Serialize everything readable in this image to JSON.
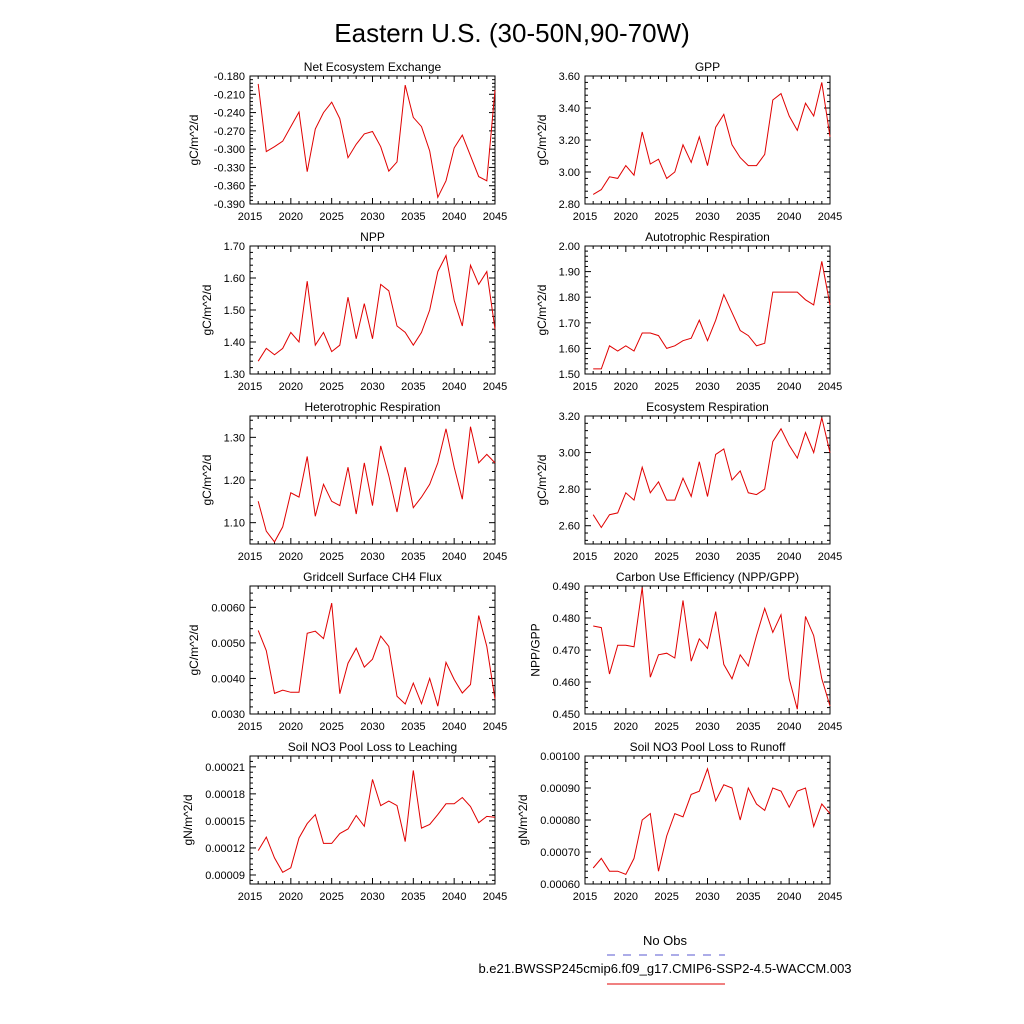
{
  "page": {
    "title": "Eastern U.S. (30-50N,90-70W)"
  },
  "legend": {
    "obs_label": "No Obs",
    "obs_color": "#5a5ad0",
    "model_label": "b.e21.BWSSP245cmip6.f09_g17.CMIP6-SSP2-4.5-WACCM.003",
    "model_color": "#e00000"
  },
  "chart_data": [
    {
      "type": "line",
      "title": "Net Ecosystem Exchange",
      "ylabel": "gC/m^2/d",
      "xlim": [
        2015,
        2045
      ],
      "xticks": [
        2015,
        2020,
        2025,
        2030,
        2035,
        2040,
        2045
      ],
      "ylim": [
        -0.39,
        -0.18
      ],
      "yticks": [
        -0.18,
        -0.21,
        -0.24,
        -0.27,
        -0.3,
        -0.33,
        -0.36,
        -0.39
      ],
      "ytick_labels": [
        "-0.180",
        "-0.210",
        "-0.240",
        "-0.270",
        "-0.300",
        "-0.330",
        "-0.360",
        "-0.390"
      ],
      "x": [
        2016,
        2017,
        2018,
        2019,
        2020,
        2021,
        2022,
        2023,
        2024,
        2025,
        2026,
        2027,
        2028,
        2029,
        2030,
        2031,
        2032,
        2033,
        2034,
        2035,
        2036,
        2037,
        2038,
        2039,
        2040,
        2041,
        2042,
        2043,
        2044,
        2045
      ],
      "series": [
        {
          "values": [
            -0.193,
            -0.304,
            -0.296,
            -0.287,
            -0.263,
            -0.239,
            -0.337,
            -0.267,
            -0.24,
            -0.223,
            -0.25,
            -0.314,
            -0.292,
            -0.275,
            -0.271,
            -0.296,
            -0.336,
            -0.321,
            -0.195,
            -0.248,
            -0.263,
            -0.303,
            -0.379,
            -0.352,
            -0.298,
            -0.277,
            -0.311,
            -0.345,
            -0.352,
            -0.203
          ]
        }
      ]
    },
    {
      "type": "line",
      "title": "GPP",
      "ylabel": "gC/m^2/d",
      "xlim": [
        2015,
        2045
      ],
      "xticks": [
        2015,
        2020,
        2025,
        2030,
        2035,
        2040,
        2045
      ],
      "ylim": [
        2.8,
        3.6
      ],
      "yticks": [
        2.8,
        3.0,
        3.2,
        3.4,
        3.6
      ],
      "ytick_labels": [
        "2.80",
        "3.00",
        "3.20",
        "3.40",
        "3.60"
      ],
      "x": [
        2016,
        2017,
        2018,
        2019,
        2020,
        2021,
        2022,
        2023,
        2024,
        2025,
        2026,
        2027,
        2028,
        2029,
        2030,
        2031,
        2032,
        2033,
        2034,
        2035,
        2036,
        2037,
        2038,
        2039,
        2040,
        2041,
        2042,
        2043,
        2044,
        2045
      ],
      "series": [
        {
          "values": [
            2.86,
            2.89,
            2.97,
            2.96,
            3.04,
            2.98,
            3.25,
            3.05,
            3.08,
            2.96,
            3.0,
            3.17,
            3.06,
            3.22,
            3.04,
            3.28,
            3.36,
            3.17,
            3.09,
            3.04,
            3.04,
            3.11,
            3.45,
            3.49,
            3.35,
            3.26,
            3.43,
            3.35,
            3.56,
            3.22
          ]
        }
      ]
    },
    {
      "type": "line",
      "title": "NPP",
      "ylabel": "gC/m^2/d",
      "xlim": [
        2015,
        2045
      ],
      "xticks": [
        2015,
        2020,
        2025,
        2030,
        2035,
        2040,
        2045
      ],
      "ylim": [
        1.3,
        1.7
      ],
      "yticks": [
        1.3,
        1.4,
        1.5,
        1.6,
        1.7
      ],
      "ytick_labels": [
        "1.30",
        "1.40",
        "1.50",
        "1.60",
        "1.70"
      ],
      "x": [
        2016,
        2017,
        2018,
        2019,
        2020,
        2021,
        2022,
        2023,
        2024,
        2025,
        2026,
        2027,
        2028,
        2029,
        2030,
        2031,
        2032,
        2033,
        2034,
        2035,
        2036,
        2037,
        2038,
        2039,
        2040,
        2041,
        2042,
        2043,
        2044,
        2045
      ],
      "series": [
        {
          "values": [
            1.34,
            1.38,
            1.36,
            1.38,
            1.43,
            1.4,
            1.59,
            1.39,
            1.43,
            1.37,
            1.39,
            1.54,
            1.41,
            1.52,
            1.41,
            1.58,
            1.56,
            1.45,
            1.43,
            1.39,
            1.43,
            1.5,
            1.62,
            1.67,
            1.53,
            1.45,
            1.64,
            1.58,
            1.62,
            1.44
          ]
        }
      ]
    },
    {
      "type": "line",
      "title": "Autotrophic Respiration",
      "ylabel": "gC/m^2/d",
      "xlim": [
        2015,
        2045
      ],
      "xticks": [
        2015,
        2020,
        2025,
        2030,
        2035,
        2040,
        2045
      ],
      "ylim": [
        1.5,
        2.0
      ],
      "yticks": [
        1.5,
        1.6,
        1.7,
        1.8,
        1.9,
        2.0
      ],
      "ytick_labels": [
        "1.50",
        "1.60",
        "1.70",
        "1.80",
        "1.90",
        "2.00"
      ],
      "x": [
        2016,
        2017,
        2018,
        2019,
        2020,
        2021,
        2022,
        2023,
        2024,
        2025,
        2026,
        2027,
        2028,
        2029,
        2030,
        2031,
        2032,
        2033,
        2034,
        2035,
        2036,
        2037,
        2038,
        2039,
        2040,
        2041,
        2042,
        2043,
        2044,
        2045
      ],
      "series": [
        {
          "values": [
            1.52,
            1.52,
            1.61,
            1.59,
            1.61,
            1.59,
            1.66,
            1.66,
            1.65,
            1.6,
            1.61,
            1.63,
            1.64,
            1.71,
            1.63,
            1.71,
            1.81,
            1.74,
            1.67,
            1.65,
            1.61,
            1.62,
            1.82,
            1.82,
            1.82,
            1.82,
            1.79,
            1.77,
            1.94,
            1.77
          ]
        }
      ]
    },
    {
      "type": "line",
      "title": "Heterotrophic Respiration",
      "ylabel": "gC/m^2/d",
      "xlim": [
        2015,
        2045
      ],
      "xticks": [
        2015,
        2020,
        2025,
        2030,
        2035,
        2040,
        2045
      ],
      "ylim": [
        1.05,
        1.35
      ],
      "yticks": [
        1.1,
        1.2,
        1.3
      ],
      "ytick_labels": [
        "1.10",
        "1.20",
        "1.30"
      ],
      "x": [
        2016,
        2017,
        2018,
        2019,
        2020,
        2021,
        2022,
        2023,
        2024,
        2025,
        2026,
        2027,
        2028,
        2029,
        2030,
        2031,
        2032,
        2033,
        2034,
        2035,
        2036,
        2037,
        2038,
        2039,
        2040,
        2041,
        2042,
        2043,
        2044,
        2045
      ],
      "series": [
        {
          "values": [
            1.15,
            1.08,
            1.055,
            1.09,
            1.17,
            1.16,
            1.255,
            1.115,
            1.19,
            1.15,
            1.14,
            1.23,
            1.12,
            1.24,
            1.14,
            1.28,
            1.21,
            1.125,
            1.23,
            1.135,
            1.16,
            1.19,
            1.24,
            1.32,
            1.23,
            1.155,
            1.325,
            1.24,
            1.26,
            1.24
          ]
        }
      ]
    },
    {
      "type": "line",
      "title": "Ecosystem Respiration",
      "ylabel": "gC/m^2/d",
      "xlim": [
        2015,
        2045
      ],
      "xticks": [
        2015,
        2020,
        2025,
        2030,
        2035,
        2040,
        2045
      ],
      "ylim": [
        2.5,
        3.2
      ],
      "yticks": [
        2.6,
        2.8,
        3.0,
        3.2
      ],
      "ytick_labels": [
        "2.60",
        "2.80",
        "3.00",
        "3.20"
      ],
      "x": [
        2016,
        2017,
        2018,
        2019,
        2020,
        2021,
        2022,
        2023,
        2024,
        2025,
        2026,
        2027,
        2028,
        2029,
        2030,
        2031,
        2032,
        2033,
        2034,
        2035,
        2036,
        2037,
        2038,
        2039,
        2040,
        2041,
        2042,
        2043,
        2044,
        2045
      ],
      "series": [
        {
          "values": [
            2.66,
            2.59,
            2.66,
            2.67,
            2.78,
            2.74,
            2.92,
            2.78,
            2.84,
            2.74,
            2.74,
            2.86,
            2.76,
            2.95,
            2.76,
            2.99,
            3.02,
            2.85,
            2.9,
            2.78,
            2.77,
            2.8,
            3.06,
            3.13,
            3.04,
            2.97,
            3.11,
            3.0,
            3.19,
            3.0
          ]
        }
      ]
    },
    {
      "type": "line",
      "title": "Gridcell Surface CH4 Flux",
      "ylabel": "gC/m^2/d",
      "xlim": [
        2015,
        2045
      ],
      "xticks": [
        2015,
        2020,
        2025,
        2030,
        2035,
        2040,
        2045
      ],
      "ylim": [
        0.003,
        0.0066
      ],
      "yticks": [
        0.003,
        0.004,
        0.005,
        0.006
      ],
      "ytick_labels": [
        "0.0030",
        "0.0040",
        "0.0050",
        "0.0060"
      ],
      "x": [
        2016,
        2017,
        2018,
        2019,
        2020,
        2021,
        2022,
        2023,
        2024,
        2025,
        2026,
        2027,
        2028,
        2029,
        2030,
        2031,
        2032,
        2033,
        2034,
        2035,
        2036,
        2037,
        2038,
        2039,
        2040,
        2041,
        2042,
        2043,
        2044,
        2045
      ],
      "series": [
        {
          "values": [
            0.00535,
            0.00478,
            0.00358,
            0.00367,
            0.00361,
            0.00361,
            0.00527,
            0.00533,
            0.00512,
            0.00612,
            0.00357,
            0.00443,
            0.00485,
            0.00432,
            0.00454,
            0.00519,
            0.0049,
            0.0035,
            0.00328,
            0.00387,
            0.00329,
            0.004,
            0.00322,
            0.00445,
            0.00397,
            0.00359,
            0.00383,
            0.00577,
            0.0049,
            0.00342
          ]
        }
      ]
    },
    {
      "type": "line",
      "title": "Carbon Use Efficiency (NPP/GPP)",
      "ylabel": "NPP/GPP",
      "xlim": [
        2015,
        2045
      ],
      "xticks": [
        2015,
        2020,
        2025,
        2030,
        2035,
        2040,
        2045
      ],
      "ylim": [
        0.45,
        0.49
      ],
      "yticks": [
        0.45,
        0.46,
        0.47,
        0.48,
        0.49
      ],
      "ytick_labels": [
        "0.450",
        "0.460",
        "0.470",
        "0.480",
        "0.490"
      ],
      "x": [
        2016,
        2017,
        2018,
        2019,
        2020,
        2021,
        2022,
        2023,
        2024,
        2025,
        2026,
        2027,
        2028,
        2029,
        2030,
        2031,
        2032,
        2033,
        2034,
        2035,
        2036,
        2037,
        2038,
        2039,
        2040,
        2041,
        2042,
        2043,
        2044,
        2045
      ],
      "series": [
        {
          "values": [
            0.4775,
            0.477,
            0.4625,
            0.4715,
            0.4715,
            0.471,
            0.4895,
            0.4615,
            0.4685,
            0.469,
            0.4675,
            0.4855,
            0.4665,
            0.4735,
            0.4705,
            0.482,
            0.4655,
            0.461,
            0.4685,
            0.465,
            0.4745,
            0.483,
            0.4755,
            0.481,
            0.461,
            0.4515,
            0.4805,
            0.4745,
            0.461,
            0.4525
          ]
        }
      ]
    },
    {
      "type": "line",
      "title": "Soil NO3 Pool Loss to Leaching",
      "ylabel": "gN/m^2/d",
      "xlim": [
        2015,
        2045
      ],
      "xticks": [
        2015,
        2020,
        2025,
        2030,
        2035,
        2040,
        2045
      ],
      "ylim": [
        8e-05,
        0.000222
      ],
      "yticks": [
        9e-05,
        0.00012,
        0.00015,
        0.00018,
        0.00021
      ],
      "ytick_labels": [
        "0.00009",
        "0.00012",
        "0.00015",
        "0.00018",
        "0.00021"
      ],
      "x": [
        2016,
        2017,
        2018,
        2019,
        2020,
        2021,
        2022,
        2023,
        2024,
        2025,
        2026,
        2027,
        2028,
        2029,
        2030,
        2031,
        2032,
        2033,
        2034,
        2035,
        2036,
        2037,
        2038,
        2039,
        2040,
        2041,
        2042,
        2043,
        2044,
        2045
      ],
      "series": [
        {
          "values": [
            0.000117,
            0.000132,
            0.000109,
            9.3e-05,
            9.8e-05,
            0.000131,
            0.000147,
            0.000157,
            0.000125,
            0.000125,
            0.000136,
            0.000141,
            0.000156,
            0.000144,
            0.000196,
            0.000167,
            0.000172,
            0.000167,
            0.000127,
            0.000206,
            0.000142,
            0.000146,
            0.000157,
            0.000169,
            0.000169,
            0.000176,
            0.000166,
            0.000148,
            0.000155,
            0.000154
          ]
        }
      ]
    },
    {
      "type": "line",
      "title": "Soil NO3 Pool Loss to Runoff",
      "ylabel": "gN/m^2/d",
      "xlim": [
        2015,
        2045
      ],
      "xticks": [
        2015,
        2020,
        2025,
        2030,
        2035,
        2040,
        2045
      ],
      "ylim": [
        0.0006,
        0.001
      ],
      "yticks": [
        0.0006,
        0.0007,
        0.0008,
        0.0009,
        0.001
      ],
      "ytick_labels": [
        "0.00060",
        "0.00070",
        "0.00080",
        "0.00090",
        "0.00100"
      ],
      "x": [
        2016,
        2017,
        2018,
        2019,
        2020,
        2021,
        2022,
        2023,
        2024,
        2025,
        2026,
        2027,
        2028,
        2029,
        2030,
        2031,
        2032,
        2033,
        2034,
        2035,
        2036,
        2037,
        2038,
        2039,
        2040,
        2041,
        2042,
        2043,
        2044,
        2045
      ],
      "series": [
        {
          "values": [
            0.00065,
            0.00068,
            0.00064,
            0.00064,
            0.00063,
            0.00068,
            0.0008,
            0.00082,
            0.00064,
            0.00075,
            0.00082,
            0.00081,
            0.00088,
            0.00089,
            0.00096,
            0.00086,
            0.00091,
            0.0009,
            0.0008,
            0.0009,
            0.00085,
            0.00083,
            0.0009,
            0.00089,
            0.00084,
            0.00089,
            0.0009,
            0.00078,
            0.00085,
            0.00082
          ]
        }
      ]
    }
  ]
}
